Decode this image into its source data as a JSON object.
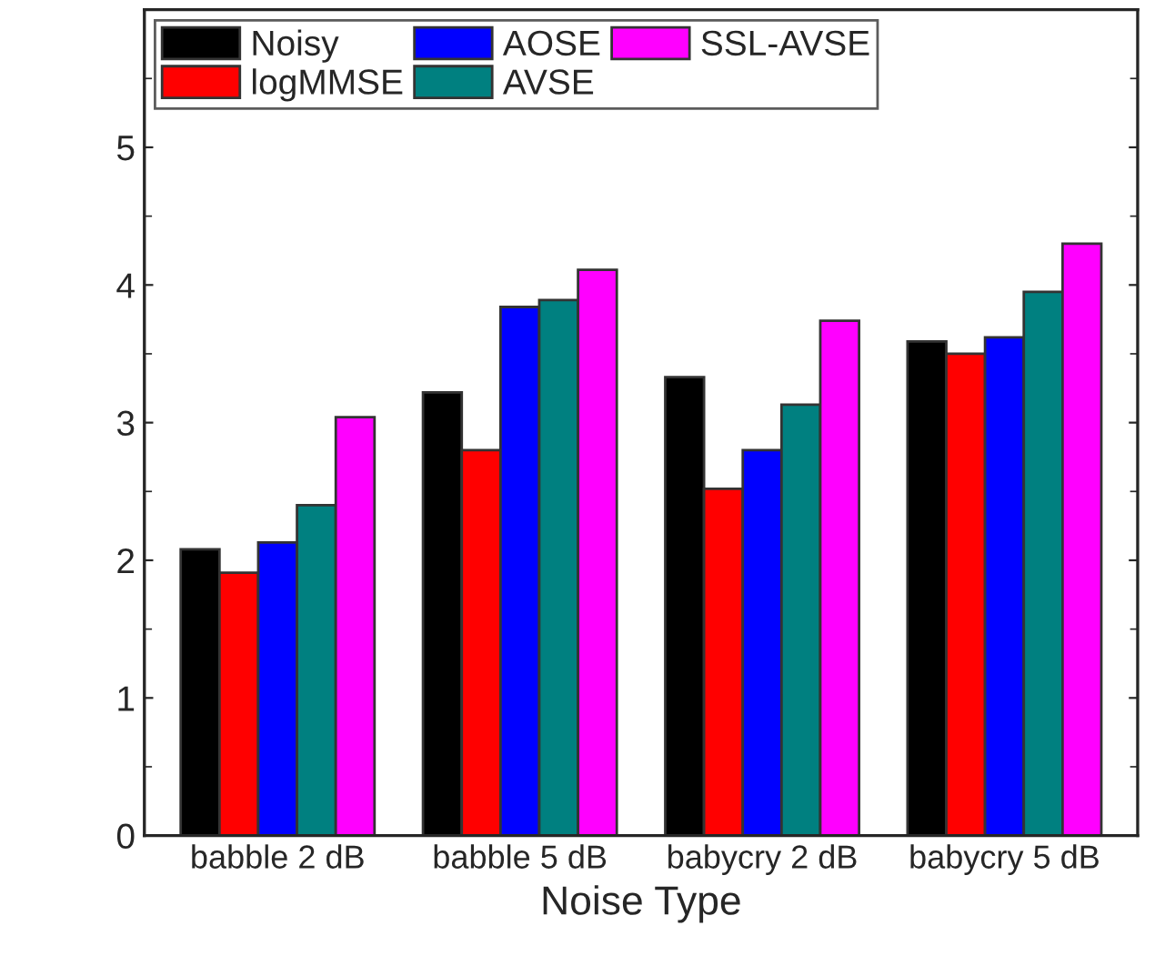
{
  "chart_data": {
    "type": "bar",
    "xlabel": "Noise Type",
    "categories": [
      "babble 2 dB",
      "babble 5 dB",
      "babycry 2 dB",
      "babycry 5 dB"
    ],
    "series": [
      {
        "name": "Noisy",
        "color": "#000000",
        "values": [
          2.08,
          3.22,
          3.33,
          3.59
        ]
      },
      {
        "name": "logMMSE",
        "color": "#ff0000",
        "values": [
          1.91,
          2.8,
          2.52,
          3.5
        ]
      },
      {
        "name": "AOSE",
        "color": "#0000ff",
        "values": [
          2.13,
          3.84,
          2.8,
          3.62
        ]
      },
      {
        "name": "AVSE",
        "color": "#008080",
        "values": [
          2.4,
          3.89,
          3.13,
          3.95
        ]
      },
      {
        "name": "SSL-AVSE",
        "color": "#ff00ff",
        "values": [
          3.04,
          4.11,
          3.74,
          4.3
        ]
      }
    ],
    "ylim": [
      0,
      6
    ],
    "yticks": [
      0,
      1,
      2,
      3,
      4,
      5
    ],
    "grid": false,
    "legend": "top left"
  }
}
